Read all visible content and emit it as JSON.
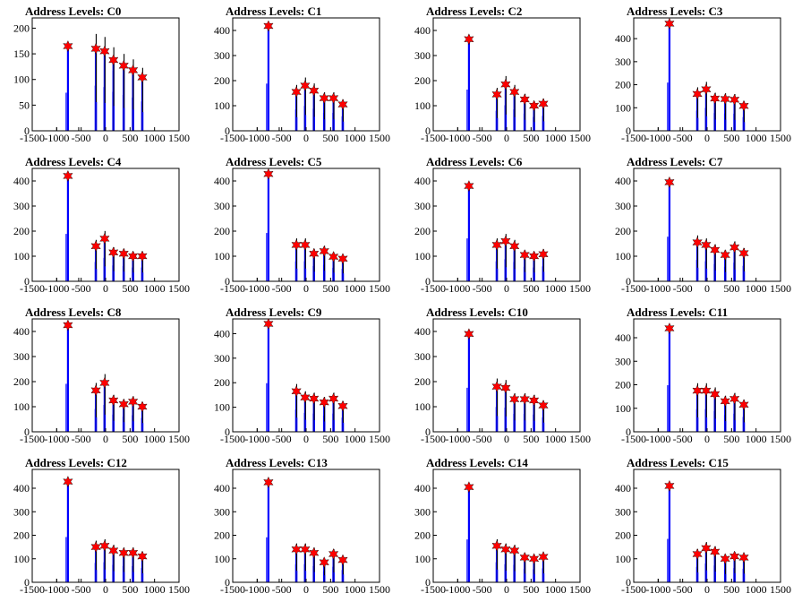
{
  "colors": {
    "axes": "#000000",
    "hist_primary": "#0000ff",
    "hist_secondary": "#000000",
    "marker": "#ff0000",
    "background": "#ffffff"
  },
  "chart_data": [
    {
      "type": "histogram",
      "title": "Address Levels: C0",
      "xlim": [
        -1500,
        1500
      ],
      "xticks": [
        -1500,
        -1000,
        -500,
        0,
        500,
        1000,
        1500
      ],
      "ylim": [
        0,
        220
      ],
      "yticks": [
        0,
        50,
        100,
        150,
        200
      ],
      "peaks": [
        {
          "x": -770,
          "y": 165
        },
        {
          "x": -200,
          "y": 160
        },
        {
          "x": -20,
          "y": 155
        },
        {
          "x": 160,
          "y": 138
        },
        {
          "x": 370,
          "y": 127
        },
        {
          "x": 560,
          "y": 118
        },
        {
          "x": 750,
          "y": 104
        }
      ],
      "grid": false
    },
    {
      "type": "histogram",
      "title": "Address Levels: C1",
      "xlim": [
        -1500,
        1500
      ],
      "xticks": [
        -1500,
        -1000,
        -500,
        0,
        500,
        1000,
        1500
      ],
      "ylim": [
        0,
        450
      ],
      "yticks": [
        0,
        100,
        200,
        300,
        400
      ],
      "peaks": [
        {
          "x": -770,
          "y": 418
        },
        {
          "x": -200,
          "y": 155
        },
        {
          "x": -20,
          "y": 180
        },
        {
          "x": 160,
          "y": 160
        },
        {
          "x": 370,
          "y": 130
        },
        {
          "x": 560,
          "y": 130
        },
        {
          "x": 750,
          "y": 105
        }
      ],
      "grid": false
    },
    {
      "type": "histogram",
      "title": "Address Levels: C2",
      "xlim": [
        -1500,
        1500
      ],
      "xticks": [
        -1500,
        -1000,
        -500,
        0,
        500,
        1000,
        1500
      ],
      "ylim": [
        0,
        450
      ],
      "yticks": [
        0,
        100,
        200,
        300,
        400
      ],
      "peaks": [
        {
          "x": -770,
          "y": 365
        },
        {
          "x": -200,
          "y": 145
        },
        {
          "x": -20,
          "y": 185
        },
        {
          "x": 160,
          "y": 155
        },
        {
          "x": 370,
          "y": 125
        },
        {
          "x": 560,
          "y": 100
        },
        {
          "x": 750,
          "y": 108
        }
      ],
      "grid": false
    },
    {
      "type": "histogram",
      "title": "Address Levels: C3",
      "xlim": [
        -1500,
        1500
      ],
      "xticks": [
        -1500,
        -1000,
        -500,
        0,
        500,
        1000,
        1500
      ],
      "ylim": [
        0,
        490
      ],
      "yticks": [
        0,
        100,
        200,
        300,
        400
      ],
      "peaks": [
        {
          "x": -770,
          "y": 465
        },
        {
          "x": -200,
          "y": 160
        },
        {
          "x": -20,
          "y": 180
        },
        {
          "x": 160,
          "y": 140
        },
        {
          "x": 370,
          "y": 138
        },
        {
          "x": 560,
          "y": 135
        },
        {
          "x": 750,
          "y": 108
        }
      ],
      "grid": false
    },
    {
      "type": "histogram",
      "title": "Address Levels: C4",
      "xlim": [
        -1500,
        1500
      ],
      "xticks": [
        -1500,
        -1000,
        -500,
        0,
        500,
        1000,
        1500
      ],
      "ylim": [
        0,
        450
      ],
      "yticks": [
        0,
        100,
        200,
        300,
        400
      ],
      "peaks": [
        {
          "x": -770,
          "y": 420
        },
        {
          "x": -200,
          "y": 140
        },
        {
          "x": -20,
          "y": 170
        },
        {
          "x": 160,
          "y": 115
        },
        {
          "x": 370,
          "y": 110
        },
        {
          "x": 560,
          "y": 100
        },
        {
          "x": 750,
          "y": 100
        }
      ],
      "grid": false
    },
    {
      "type": "histogram",
      "title": "Address Levels: C5",
      "xlim": [
        -1500,
        1500
      ],
      "xticks": [
        -1500,
        -1000,
        -500,
        0,
        500,
        1000,
        1500
      ],
      "ylim": [
        0,
        450
      ],
      "yticks": [
        0,
        100,
        200,
        300,
        400
      ],
      "peaks": [
        {
          "x": -770,
          "y": 428
        },
        {
          "x": -200,
          "y": 145
        },
        {
          "x": -20,
          "y": 145
        },
        {
          "x": 160,
          "y": 110
        },
        {
          "x": 370,
          "y": 120
        },
        {
          "x": 560,
          "y": 98
        },
        {
          "x": 750,
          "y": 90
        }
      ],
      "grid": false
    },
    {
      "type": "histogram",
      "title": "Address Levels: C6",
      "xlim": [
        -1500,
        1500
      ],
      "xticks": [
        -1500,
        -1000,
        -500,
        0,
        500,
        1000,
        1500
      ],
      "ylim": [
        0,
        450
      ],
      "yticks": [
        0,
        100,
        200,
        300,
        400
      ],
      "peaks": [
        {
          "x": -770,
          "y": 380
        },
        {
          "x": -200,
          "y": 145
        },
        {
          "x": -20,
          "y": 160
        },
        {
          "x": 160,
          "y": 140
        },
        {
          "x": 370,
          "y": 105
        },
        {
          "x": 560,
          "y": 100
        },
        {
          "x": 750,
          "y": 108
        }
      ],
      "grid": false
    },
    {
      "type": "histogram",
      "title": "Address Levels: C7",
      "xlim": [
        -1500,
        1500
      ],
      "xticks": [
        -1500,
        -1000,
        -500,
        0,
        500,
        1000,
        1500
      ],
      "ylim": [
        0,
        450
      ],
      "yticks": [
        0,
        100,
        200,
        300,
        400
      ],
      "peaks": [
        {
          "x": -770,
          "y": 395
        },
        {
          "x": -200,
          "y": 155
        },
        {
          "x": -20,
          "y": 145
        },
        {
          "x": 160,
          "y": 125
        },
        {
          "x": 370,
          "y": 105
        },
        {
          "x": 560,
          "y": 135
        },
        {
          "x": 750,
          "y": 112
        }
      ],
      "grid": false
    },
    {
      "type": "histogram",
      "title": "Address Levels: C8",
      "xlim": [
        -1500,
        1500
      ],
      "xticks": [
        -1500,
        -1000,
        -500,
        0,
        500,
        1000,
        1500
      ],
      "ylim": [
        0,
        450
      ],
      "yticks": [
        0,
        100,
        200,
        300,
        400
      ],
      "peaks": [
        {
          "x": -770,
          "y": 425
        },
        {
          "x": -200,
          "y": 165
        },
        {
          "x": -20,
          "y": 195
        },
        {
          "x": 160,
          "y": 125
        },
        {
          "x": 370,
          "y": 110
        },
        {
          "x": 560,
          "y": 120
        },
        {
          "x": 750,
          "y": 100
        }
      ],
      "grid": false
    },
    {
      "type": "histogram",
      "title": "Address Levels: C9",
      "xlim": [
        -1500,
        1500
      ],
      "xticks": [
        -1500,
        -1000,
        -500,
        0,
        500,
        1000,
        1500
      ],
      "ylim": [
        0,
        460
      ],
      "yticks": [
        0,
        100,
        200,
        300,
        400
      ],
      "peaks": [
        {
          "x": -770,
          "y": 440
        },
        {
          "x": -200,
          "y": 165
        },
        {
          "x": -20,
          "y": 140
        },
        {
          "x": 160,
          "y": 135
        },
        {
          "x": 370,
          "y": 120
        },
        {
          "x": 560,
          "y": 135
        },
        {
          "x": 750,
          "y": 105
        }
      ],
      "grid": false
    },
    {
      "type": "histogram",
      "title": "Address Levels: C10",
      "xlim": [
        -1500,
        1500
      ],
      "xticks": [
        -1500,
        -1000,
        -500,
        0,
        500,
        1000,
        1500
      ],
      "ylim": [
        0,
        450
      ],
      "yticks": [
        0,
        100,
        200,
        300,
        400
      ],
      "peaks": [
        {
          "x": -770,
          "y": 390
        },
        {
          "x": -200,
          "y": 180
        },
        {
          "x": -20,
          "y": 175
        },
        {
          "x": 160,
          "y": 130
        },
        {
          "x": 370,
          "y": 130
        },
        {
          "x": 560,
          "y": 125
        },
        {
          "x": 750,
          "y": 105
        }
      ],
      "grid": false
    },
    {
      "type": "histogram",
      "title": "Address Levels: C11",
      "xlim": [
        -1500,
        1500
      ],
      "xticks": [
        -1500,
        -1000,
        -500,
        0,
        500,
        1000,
        1500
      ],
      "ylim": [
        0,
        480
      ],
      "yticks": [
        0,
        100,
        200,
        300,
        400
      ],
      "peaks": [
        {
          "x": -770,
          "y": 440
        },
        {
          "x": -200,
          "y": 175
        },
        {
          "x": -20,
          "y": 175
        },
        {
          "x": 160,
          "y": 160
        },
        {
          "x": 370,
          "y": 130
        },
        {
          "x": 560,
          "y": 140
        },
        {
          "x": 750,
          "y": 115
        }
      ],
      "grid": false
    },
    {
      "type": "histogram",
      "title": "Address Levels: C12",
      "xlim": [
        -1500,
        1500
      ],
      "xticks": [
        -1500,
        -1000,
        -500,
        0,
        500,
        1000,
        1500
      ],
      "ylim": [
        0,
        480
      ],
      "yticks": [
        0,
        100,
        200,
        300,
        400
      ],
      "peaks": [
        {
          "x": -770,
          "y": 428
        },
        {
          "x": -200,
          "y": 150
        },
        {
          "x": -20,
          "y": 155
        },
        {
          "x": 160,
          "y": 135
        },
        {
          "x": 370,
          "y": 125
        },
        {
          "x": 560,
          "y": 125
        },
        {
          "x": 750,
          "y": 110
        }
      ],
      "grid": false
    },
    {
      "type": "histogram",
      "title": "Address Levels: C13",
      "xlim": [
        -1500,
        1500
      ],
      "xticks": [
        -1500,
        -1000,
        -500,
        0,
        500,
        1000,
        1500
      ],
      "ylim": [
        0,
        480
      ],
      "yticks": [
        0,
        100,
        200,
        300,
        400
      ],
      "peaks": [
        {
          "x": -770,
          "y": 425
        },
        {
          "x": -200,
          "y": 140
        },
        {
          "x": -20,
          "y": 140
        },
        {
          "x": 160,
          "y": 125
        },
        {
          "x": 370,
          "y": 85
        },
        {
          "x": 560,
          "y": 120
        },
        {
          "x": 750,
          "y": 95
        }
      ],
      "grid": false
    },
    {
      "type": "histogram",
      "title": "Address Levels: C14",
      "xlim": [
        -1500,
        1500
      ],
      "xticks": [
        -1500,
        -1000,
        -500,
        0,
        500,
        1000,
        1500
      ],
      "ylim": [
        0,
        480
      ],
      "yticks": [
        0,
        100,
        200,
        300,
        400
      ],
      "peaks": [
        {
          "x": -770,
          "y": 405
        },
        {
          "x": -200,
          "y": 155
        },
        {
          "x": -20,
          "y": 140
        },
        {
          "x": 160,
          "y": 135
        },
        {
          "x": 370,
          "y": 105
        },
        {
          "x": 560,
          "y": 100
        },
        {
          "x": 750,
          "y": 108
        }
      ],
      "grid": false
    },
    {
      "type": "histogram",
      "title": "Address Levels: C15",
      "xlim": [
        -1500,
        1500
      ],
      "xticks": [
        -1500,
        -1000,
        -500,
        0,
        500,
        1000,
        1500
      ],
      "ylim": [
        0,
        480
      ],
      "yticks": [
        0,
        100,
        200,
        300,
        400
      ],
      "peaks": [
        {
          "x": -770,
          "y": 410
        },
        {
          "x": -200,
          "y": 120
        },
        {
          "x": -20,
          "y": 145
        },
        {
          "x": 160,
          "y": 130
        },
        {
          "x": 370,
          "y": 100
        },
        {
          "x": 560,
          "y": 110
        },
        {
          "x": 750,
          "y": 105
        }
      ],
      "grid": false
    }
  ]
}
